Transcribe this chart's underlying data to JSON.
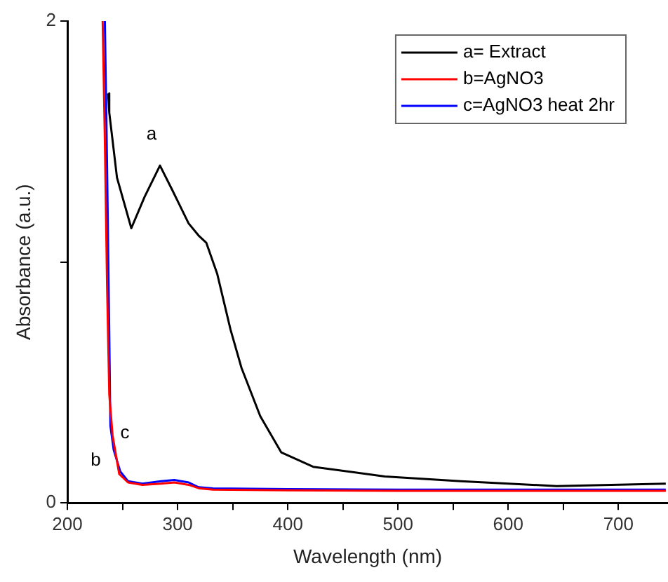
{
  "chart_data": {
    "type": "line",
    "xlabel": "Wavelength (nm)",
    "ylabel": "Absorbance (a.u.)",
    "xlim": [
      200,
      745
    ],
    "ylim": [
      0,
      2
    ],
    "xticks": [
      200,
      {
        "value": 250,
        "label": null
      },
      300,
      {
        "value": 350,
        "label": null
      },
      400,
      {
        "value": 450,
        "label": null
      },
      500,
      {
        "value": 550,
        "label": null
      },
      600,
      {
        "value": 650,
        "label": null
      },
      700
    ],
    "yticks": [
      0,
      {
        "value": 1,
        "label": null
      },
      2
    ],
    "grid": false,
    "legend": "top right",
    "marker": "none",
    "line_style": "solid",
    "series": [
      {
        "name": "a= Extract",
        "color": "#000000",
        "x": [
          237,
          238,
          245,
          258,
          270,
          284,
          295,
          310,
          319,
          326,
          336,
          348,
          358,
          375,
          394,
          423,
          488,
          557,
          644,
          743
        ],
        "values": [
          1.7,
          1.62,
          1.35,
          1.14,
          1.27,
          1.4,
          1.3,
          1.16,
          1.11,
          1.08,
          0.95,
          0.72,
          0.56,
          0.36,
          0.21,
          0.15,
          0.11,
          0.09,
          0.07,
          0.08
        ]
      },
      {
        "name": "b=AgNO3",
        "color": "#ff0000",
        "x": [
          232,
          234,
          236,
          238,
          241,
          247,
          255,
          268,
          285,
          297,
          310,
          320,
          332,
          400,
          500,
          600,
          743
        ],
        "values": [
          2,
          1.5,
          0.9,
          0.45,
          0.28,
          0.12,
          0.085,
          0.075,
          0.08,
          0.085,
          0.075,
          0.06,
          0.055,
          0.052,
          0.05,
          0.05,
          0.05
        ]
      },
      {
        "name": "c=AgNO3 heat 2hr",
        "color": "#0000ff",
        "x": [
          234,
          236,
          238,
          239,
          242,
          248,
          255,
          268,
          285,
          297,
          310,
          319,
          332,
          400,
          500,
          600,
          743
        ],
        "values": [
          2,
          1.4,
          0.7,
          0.32,
          0.22,
          0.13,
          0.09,
          0.08,
          0.09,
          0.095,
          0.085,
          0.065,
          0.06,
          0.057,
          0.055,
          0.055,
          0.055
        ]
      }
    ],
    "annotations": [
      {
        "text": "a",
        "x": 284,
        "y": 1.4
      },
      {
        "text": "b",
        "x": 241,
        "y": 0.28
      },
      {
        "text": "c",
        "x": 242,
        "y": 0.22
      }
    ]
  }
}
